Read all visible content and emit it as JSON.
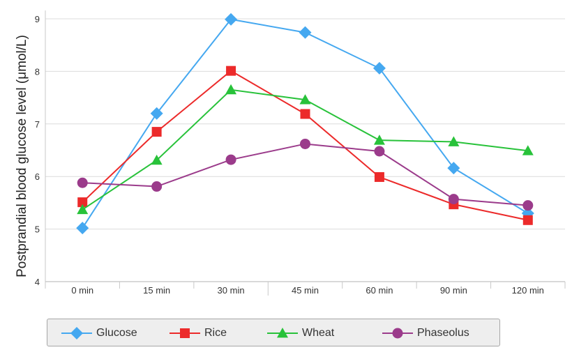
{
  "chart_data": {
    "type": "line",
    "title": "",
    "xlabel": "",
    "ylabel": "Postprandial blood glucose level (μmol/L)",
    "categories": [
      "0 min",
      "15 min",
      "30 min",
      "45 min",
      "60 min",
      "90 min",
      "120 min"
    ],
    "ylim": [
      4,
      9
    ],
    "yticks": [
      "4",
      "5",
      "6",
      "7",
      "8",
      "9"
    ],
    "grid": "horizontal",
    "legend_position": "bottom",
    "series": [
      {
        "name": "Glucose",
        "color": "#45a8f0",
        "marker": "diamond",
        "values": [
          5.02,
          7.2,
          8.99,
          8.74,
          8.06,
          6.16,
          5.3
        ]
      },
      {
        "name": "Rice",
        "color": "#ec2a2a",
        "marker": "square",
        "values": [
          5.51,
          6.85,
          8.01,
          7.19,
          5.99,
          5.47,
          5.17
        ]
      },
      {
        "name": "Wheat",
        "color": "#28c23a",
        "marker": "triangle",
        "values": [
          5.37,
          6.31,
          7.65,
          7.46,
          6.69,
          6.66,
          6.49
        ]
      },
      {
        "name": "Phaseolus",
        "color": "#9b3b8b",
        "marker": "circle",
        "values": [
          5.88,
          5.81,
          6.32,
          6.62,
          6.48,
          5.57,
          5.45
        ]
      }
    ]
  }
}
